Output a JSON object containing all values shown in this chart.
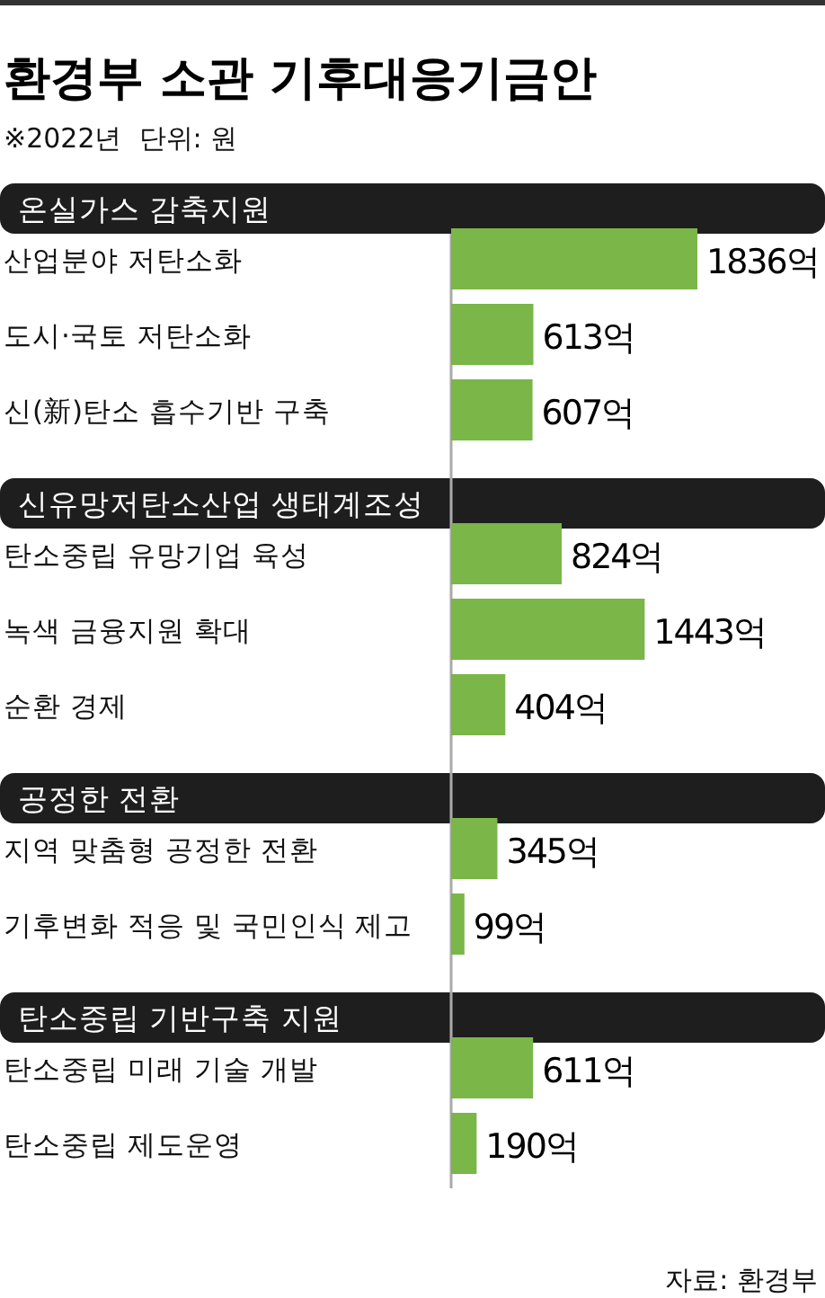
{
  "chart_data": {
    "type": "bar",
    "orientation": "horizontal",
    "title": "환경부 소관 기후대응기금안",
    "subtitle": "※2022년  단위: 원",
    "categories": [
      "산업분야 저탄소화",
      "도시·국토 저탄소화",
      "신(新)탄소 흡수기반 구축",
      "탄소중립 유망기업 육성",
      "녹색 금융지원 확대",
      "순환 경제",
      "지역 맞춤형 공정한 전환",
      "기후변화 적응 및 국민인식 제고",
      "탄소중립 미래 기술 개발",
      "탄소중립 제도운영"
    ],
    "values": [
      1836,
      613,
      607,
      824,
      1443,
      404,
      345,
      99,
      611,
      190
    ],
    "value_labels": [
      "1836억",
      "613억",
      "607억",
      "824억",
      "1443억",
      "404억",
      "345억",
      "99억",
      "611억",
      "190억"
    ],
    "color": "#7ab648",
    "annotations": [
      "온실가스 감축지원",
      "신유망저탄소산업 생태계조성",
      "공정한 전환",
      "탄소중립 기반구축 지원",
      "자료: 환경부"
    ]
  }
}
